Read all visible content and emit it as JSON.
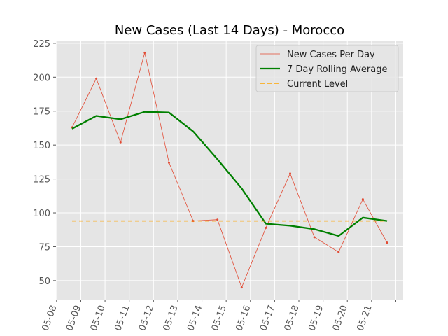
{
  "chart_data": {
    "type": "line",
    "title": "New Cases (Last 14 Days) - Morocco",
    "xlabel": "",
    "ylabel": "",
    "categories": [
      "05-08",
      "05-09",
      "05-10",
      "05-11",
      "05-12",
      "05-13",
      "05-14",
      "05-15",
      "05-16",
      "05-17",
      "05-18",
      "05-19",
      "05-20",
      "05-21"
    ],
    "ylim": [
      36,
      227
    ],
    "yticks": [
      50,
      75,
      100,
      125,
      150,
      175,
      200,
      225
    ],
    "grid": true,
    "legend_position": "top-right",
    "series": [
      {
        "name": "New Cases Per Day",
        "color": "#e24a33",
        "style": "thin-line-with-dots",
        "values": [
          163,
          199,
          152,
          218,
          137,
          94,
          95,
          45,
          89,
          129,
          82,
          71,
          110,
          78
        ]
      },
      {
        "name": "7 Day Rolling Average",
        "color": "#008000",
        "style": "thick-line",
        "values": [
          162,
          171.5,
          169,
          174.5,
          174,
          160,
          139.5,
          118,
          92,
          90.5,
          88,
          83,
          96.5,
          94
        ]
      },
      {
        "name": "Current Level",
        "color": "#ffa500",
        "style": "dashed-line",
        "values": [
          94,
          94,
          94,
          94,
          94,
          94,
          94,
          94,
          94,
          94,
          94,
          94,
          94,
          94
        ]
      }
    ]
  }
}
